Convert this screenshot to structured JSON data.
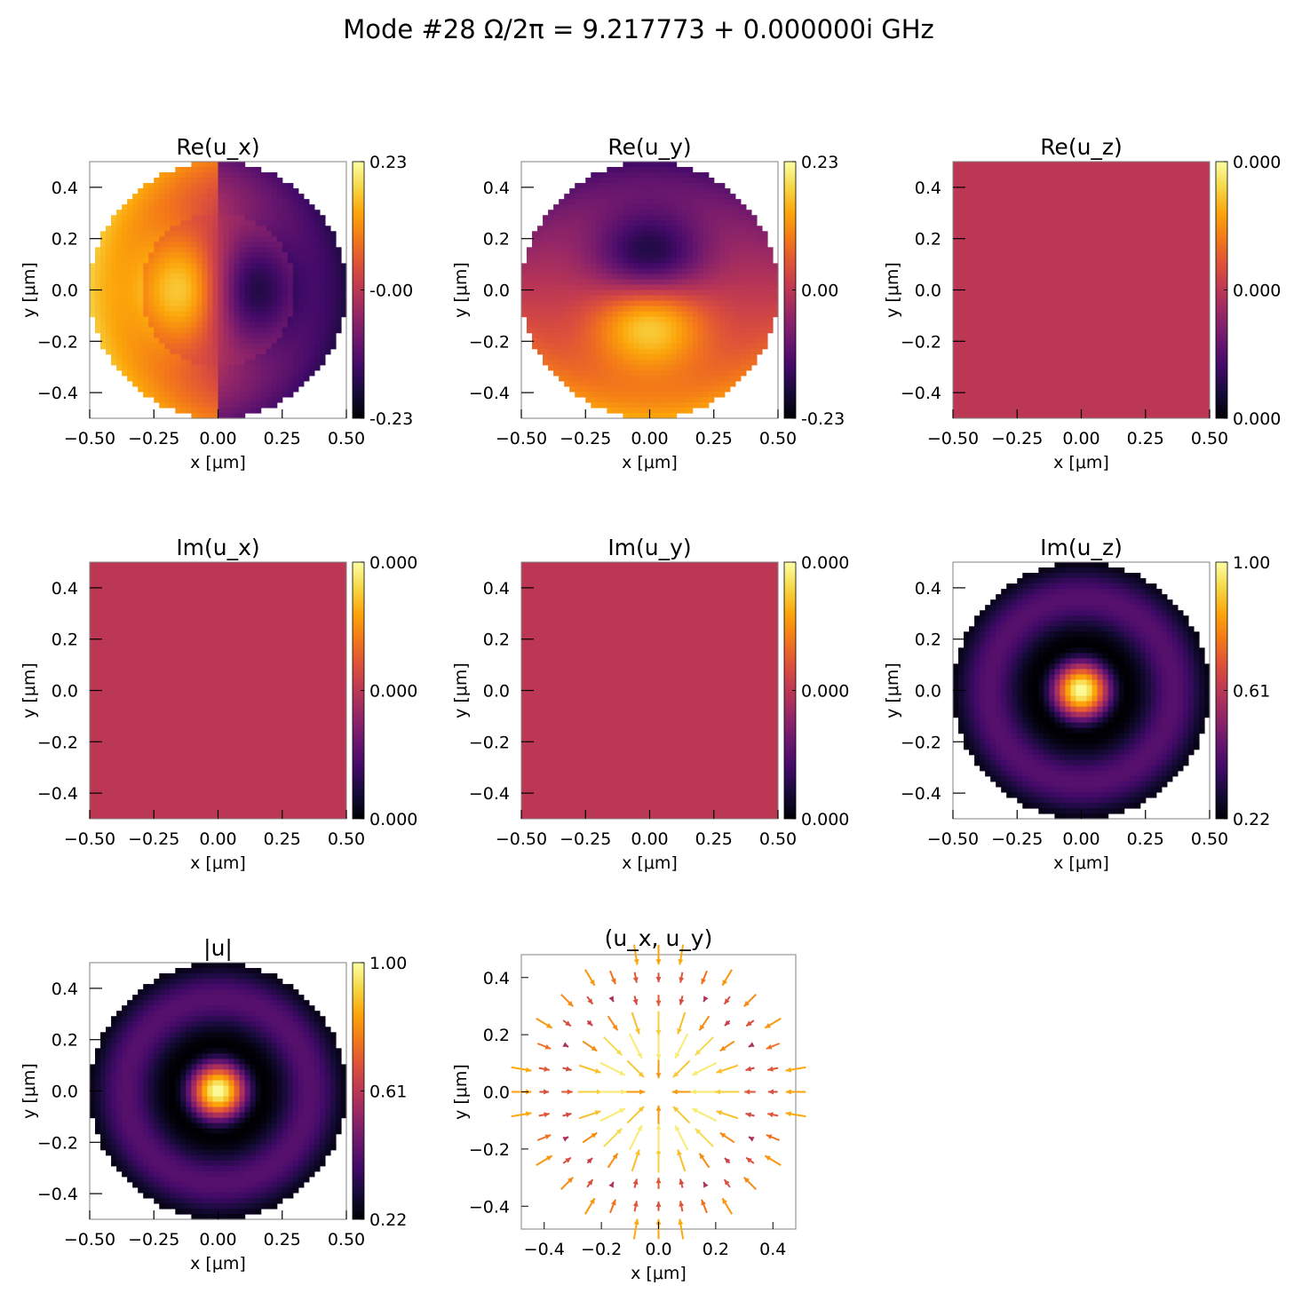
{
  "figure": {
    "title": "Mode #28   Ω/2π = 9.217773 + 0.000000i GHz"
  },
  "axis_labels": {
    "x": "x [μm]",
    "y": "y [μm]"
  },
  "colormap": "inferno",
  "colors": {
    "uniform_field": "#bc3754",
    "frame": "#000000"
  },
  "chart_data": [
    {
      "type": "heatmap",
      "title": "Re(u_x)",
      "field": "Re(ux)",
      "xlabel": "x [μm]",
      "ylabel": "y [μm]",
      "xlim": [
        -0.5,
        0.5
      ],
      "ylim": [
        -0.5,
        0.5
      ],
      "x_ticks": [
        "−0.50",
        "−0.25",
        "0.00",
        "0.25",
        "0.50"
      ],
      "y_ticks": [
        "0.4",
        "0.2",
        "0.0",
        "−0.2",
        "−0.4"
      ],
      "colorbar_ticks": [
        "0.23",
        "-0.00",
        "-0.23"
      ],
      "value_range": [
        -0.23,
        0.23
      ]
    },
    {
      "type": "heatmap",
      "title": "Re(u_y)",
      "field": "Re(uy)",
      "xlabel": "x [μm]",
      "ylabel": "y [μm]",
      "xlim": [
        -0.5,
        0.5
      ],
      "ylim": [
        -0.5,
        0.5
      ],
      "x_ticks": [
        "−0.50",
        "−0.25",
        "0.00",
        "0.25",
        "0.50"
      ],
      "y_ticks": [
        "0.4",
        "0.2",
        "0.0",
        "−0.2",
        "−0.4"
      ],
      "colorbar_ticks": [
        "0.23",
        "0.00",
        "-0.23"
      ],
      "value_range": [
        -0.23,
        0.23
      ]
    },
    {
      "type": "heatmap",
      "title": "Re(u_z)",
      "field": "zero",
      "xlabel": "x [μm]",
      "ylabel": "y [μm]",
      "xlim": [
        -0.5,
        0.5
      ],
      "ylim": [
        -0.5,
        0.5
      ],
      "x_ticks": [
        "−0.50",
        "−0.25",
        "0.00",
        "0.25",
        "0.50"
      ],
      "y_ticks": [
        "0.4",
        "0.2",
        "0.0",
        "−0.2",
        "−0.4"
      ],
      "colorbar_ticks": [
        "0.000",
        "0.000",
        "0.000"
      ],
      "value_range": [
        0,
        0
      ]
    },
    {
      "type": "heatmap",
      "title": "Im(u_x)",
      "field": "zero",
      "xlabel": "x [μm]",
      "ylabel": "y [μm]",
      "xlim": [
        -0.5,
        0.5
      ],
      "ylim": [
        -0.5,
        0.5
      ],
      "x_ticks": [
        "−0.50",
        "−0.25",
        "0.00",
        "0.25",
        "0.50"
      ],
      "y_ticks": [
        "0.4",
        "0.2",
        "0.0",
        "−0.2",
        "−0.4"
      ],
      "colorbar_ticks": [
        "0.000",
        "0.000",
        "0.000"
      ],
      "value_range": [
        0,
        0
      ]
    },
    {
      "type": "heatmap",
      "title": "Im(u_y)",
      "field": "zero",
      "xlabel": "x [μm]",
      "ylabel": "y [μm]",
      "xlim": [
        -0.5,
        0.5
      ],
      "ylim": [
        -0.5,
        0.5
      ],
      "x_ticks": [
        "−0.50",
        "−0.25",
        "0.00",
        "0.25",
        "0.50"
      ],
      "y_ticks": [
        "0.4",
        "0.2",
        "0.0",
        "−0.2",
        "−0.4"
      ],
      "colorbar_ticks": [
        "0.000",
        "0.000",
        "0.000"
      ],
      "value_range": [
        0,
        0
      ]
    },
    {
      "type": "heatmap",
      "title": "Im(u_z)",
      "field": "Im(uz)",
      "xlabel": "x [μm]",
      "ylabel": "y [μm]",
      "xlim": [
        -0.5,
        0.5
      ],
      "ylim": [
        -0.5,
        0.5
      ],
      "x_ticks": [
        "−0.50",
        "−0.25",
        "0.00",
        "0.25",
        "0.50"
      ],
      "y_ticks": [
        "0.4",
        "0.2",
        "0.0",
        "−0.2",
        "−0.4"
      ],
      "colorbar_ticks": [
        "1.00",
        "0.61",
        "0.22"
      ],
      "value_range": [
        0.22,
        1.0
      ]
    },
    {
      "type": "heatmap",
      "title": "|u|",
      "field": "abs(u)",
      "xlabel": "x [μm]",
      "ylabel": "y [μm]",
      "xlim": [
        -0.5,
        0.5
      ],
      "ylim": [
        -0.5,
        0.5
      ],
      "x_ticks": [
        "−0.50",
        "−0.25",
        "0.00",
        "0.25",
        "0.50"
      ],
      "y_ticks": [
        "0.4",
        "0.2",
        "0.0",
        "−0.2",
        "−0.4"
      ],
      "colorbar_ticks": [
        "1.00",
        "0.61",
        "0.22"
      ],
      "value_range": [
        0.22,
        1.0
      ]
    },
    {
      "type": "quiver",
      "title": "(u_x, u_y)",
      "field": "transverse vectors",
      "xlabel": "x [μm]",
      "ylabel": "y [μm]",
      "xlim": [
        -0.48,
        0.48
      ],
      "ylim": [
        -0.48,
        0.48
      ],
      "x_ticks": [
        "−0.4",
        "−0.2",
        "0.0",
        "0.2",
        "0.4"
      ],
      "y_ticks": [
        "0.4",
        "0.2",
        "0.0",
        "−0.2",
        "−0.4"
      ],
      "arrow_grid_spacing": 0.08
    }
  ]
}
